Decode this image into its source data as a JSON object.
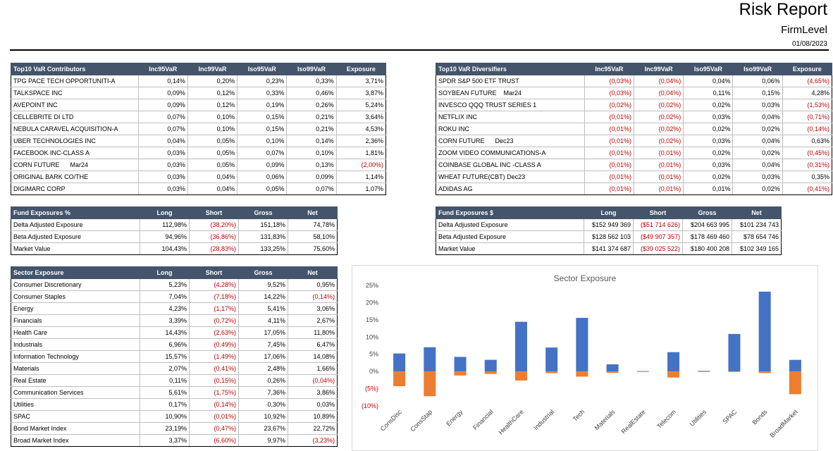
{
  "header": {
    "title": "Risk Report",
    "subtitle": "FirmLevel",
    "date": "01/08/2023"
  },
  "var_contributors": {
    "headers": [
      "Top10 VaR Contributors",
      "Inc95VaR",
      "Inc99VaR",
      "Iso95VaR",
      "Iso99VaR",
      "Exposure"
    ],
    "rows": [
      [
        "TPG PACE TECH OPPORTUNITI-A",
        "0,14%",
        "0,20%",
        "0,23%",
        "0,33%",
        "3,71%"
      ],
      [
        "TALKSPACE INC",
        "0,09%",
        "0,12%",
        "0,33%",
        "0,46%",
        "3,87%"
      ],
      [
        "AVEPOINT INC",
        "0,09%",
        "0,12%",
        "0,19%",
        "0,26%",
        "5,24%"
      ],
      [
        "CELLEBRITE DI LTD",
        "0,07%",
        "0,10%",
        "0,15%",
        "0,21%",
        "3,64%"
      ],
      [
        "NEBULA CARAVEL ACQUISITION-A",
        "0,07%",
        "0,10%",
        "0,15%",
        "0,21%",
        "4,53%"
      ],
      [
        "UBER TECHNOLOGIES INC",
        "0,04%",
        "0,05%",
        "0,10%",
        "0,14%",
        "2,36%"
      ],
      [
        "FACEBOOK INC-CLASS A",
        "0,03%",
        "0,05%",
        "0,07%",
        "0,10%",
        "1,81%"
      ],
      [
        "CORN FUTURE      Mar24",
        "0,03%",
        "0,05%",
        "0,09%",
        "0,13%",
        "(2,00%)"
      ],
      [
        "ORIGINAL BARK CO/THE",
        "0,03%",
        "0,04%",
        "0,06%",
        "0,09%",
        "1,14%"
      ],
      [
        "DIGIMARC CORP",
        "0,03%",
        "0,04%",
        "0,05%",
        "0,07%",
        "1,07%"
      ]
    ]
  },
  "var_diversifiers": {
    "headers": [
      "Top10 VaR Diversifiers",
      "Inc95VaR",
      "Inc99VaR",
      "Iso95VaR",
      "Iso99VaR",
      "Exposure"
    ],
    "rows": [
      [
        "SPDR S&P 500 ETF TRUST",
        "(0,03%)",
        "(0,04%)",
        "0,04%",
        "0,06%",
        "(4,65%)"
      ],
      [
        "SOYBEAN FUTURE    Mar24",
        "(0,03%)",
        "(0,04%)",
        "0,11%",
        "0,15%",
        "4,28%"
      ],
      [
        "INVESCO QQQ TRUST SERIES 1",
        "(0,02%)",
        "(0,02%)",
        "0,02%",
        "0,03%",
        "(1,53%)"
      ],
      [
        "NETFLIX INC",
        "(0,01%)",
        "(0,02%)",
        "0,03%",
        "0,04%",
        "(0,71%)"
      ],
      [
        "ROKU INC",
        "(0,01%)",
        "(0,02%)",
        "0,02%",
        "0,02%",
        "(0,14%)"
      ],
      [
        "CORN FUTURE      Dec23",
        "(0,01%)",
        "(0,02%)",
        "0,03%",
        "0,04%",
        "0,63%"
      ],
      [
        "ZOOM VIDEO COMMUNICATIONS-A",
        "(0,01%)",
        "(0,01%)",
        "0,02%",
        "0,02%",
        "(0,45%)"
      ],
      [
        "COINBASE GLOBAL INC -CLASS A",
        "(0,01%)",
        "(0,01%)",
        "0,03%",
        "0,04%",
        "(0,31%)"
      ],
      [
        "WHEAT FUTURE(CBT) Dec23",
        "(0,01%)",
        "(0,01%)",
        "0,02%",
        "0,03%",
        "0,35%"
      ],
      [
        "ADIDAS AG",
        "(0,01%)",
        "(0,01%)",
        "0,01%",
        "0,02%",
        "(0,41%)"
      ]
    ]
  },
  "fund_exposures_pct": {
    "headers": [
      "Fund Exposures %",
      "Long",
      "Short",
      "Gross",
      "Net"
    ],
    "rows": [
      [
        "Delta Adjusted Exposure",
        "112,98%",
        "(38,20%)",
        "151,18%",
        "74,78%"
      ],
      [
        "Beta Adjusted Exposure",
        "94,96%",
        "(36,86%)",
        "131,83%",
        "58,10%"
      ],
      [
        "Market Value",
        "104,43%",
        "(28,83%)",
        "133,25%",
        "75,60%"
      ]
    ]
  },
  "fund_exposures_usd": {
    "headers": [
      "Fund Exposures $",
      "Long",
      "Short",
      "Gross",
      "Net"
    ],
    "rows": [
      [
        "Delta Adjusted Exposure",
        "$152 949 369",
        "($51 714 626)",
        "$204 663 995",
        "$101 234 743"
      ],
      [
        "Beta Adjusted Exposure",
        "$128 562 103",
        "($49 907 357)",
        "$178 469 460",
        "$78 654 746"
      ],
      [
        "Market Value",
        "$141 374 687",
        "($39 025 522)",
        "$180 400 208",
        "$102 349 165"
      ]
    ]
  },
  "sector_exposure": {
    "headers": [
      "Sector Exposure",
      "Long",
      "Short",
      "Gross",
      "Net"
    ],
    "rows": [
      [
        "Consumer Discretionary",
        "5,23%",
        "(4,28%)",
        "9,52%",
        "0,95%"
      ],
      [
        "Consumer Staples",
        "7,04%",
        "(7,18%)",
        "14,22%",
        "(0,14%)"
      ],
      [
        "Energy",
        "4,23%",
        "(1,17%)",
        "5,41%",
        "3,06%"
      ],
      [
        "Financials",
        "3,39%",
        "(0,72%)",
        "4,11%",
        "2,67%"
      ],
      [
        "Health Care",
        "14,43%",
        "(2,63%)",
        "17,05%",
        "11,80%"
      ],
      [
        "Industrials",
        "6,96%",
        "(0,49%)",
        "7,45%",
        "6,47%"
      ],
      [
        "Information Technology",
        "15,57%",
        "(1,49%)",
        "17,06%",
        "14,08%"
      ],
      [
        "Materials",
        "2,07%",
        "(0,41%)",
        "2,48%",
        "1,66%"
      ],
      [
        "Real Estate",
        "0,11%",
        "(0,15%)",
        "0,26%",
        "(0,04%)"
      ],
      [
        "Communication Services",
        "5,61%",
        "(1,75%)",
        "7,36%",
        "3,86%"
      ],
      [
        "Utilities",
        "0,17%",
        "(0,14%)",
        "0,30%",
        "0,03%"
      ],
      [
        "SPAC",
        "10,90%",
        "(0,01%)",
        "10,92%",
        "10,89%"
      ],
      [
        "Bond Market Index",
        "23,19%",
        "(0,47%)",
        "23,67%",
        "22,72%"
      ],
      [
        "Broad Market Index",
        "3,37%",
        "(6,60%)",
        "9,97%",
        "(3,23%)"
      ]
    ]
  },
  "colors": {
    "header_bg": "#44546a",
    "negative": "#c00000",
    "long_bar": "#4472c4",
    "short_bar": "#ed7d31"
  },
  "chart_data": {
    "type": "bar",
    "title": "Sector Exposure",
    "categories": [
      "ConsDisc",
      "ConsStap",
      "Energy",
      "Financial",
      "HealthCare",
      "Industrial",
      "Tech",
      "Materials",
      "RealEstate",
      "Telecom",
      "Utilities",
      "SPAC",
      "Bonds",
      "BroadMarket"
    ],
    "series": [
      {
        "values": [
          5.23,
          7.04,
          4.23,
          3.39,
          14.43,
          6.96,
          15.57,
          2.07,
          0.11,
          5.61,
          0.17,
          10.9,
          23.19,
          3.37
        ]
      },
      {
        "values": [
          -4.28,
          -7.18,
          -1.17,
          -0.72,
          -2.63,
          -0.49,
          -1.49,
          -0.41,
          -0.15,
          -1.75,
          -0.14,
          -0.01,
          -0.47,
          -6.6
        ]
      }
    ],
    "y_ticks": [
      "25%",
      "20%",
      "15%",
      "10%",
      "5%",
      "0%",
      "(5%)",
      "(10%)"
    ],
    "ylim": [
      -10,
      25
    ],
    "stacked": true,
    "grid": false
  }
}
